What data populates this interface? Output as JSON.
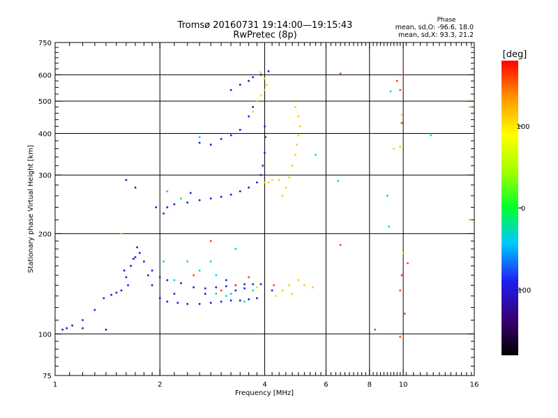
{
  "chart_data": {
    "type": "scatter",
    "title": "Tromsø 20160731 19:14:00—19:15:43",
    "subtitle": "RwPretec (8p)",
    "xlabel": "Frequency [MHz]",
    "ylabel": "Stationary phase Virtual Height [km]",
    "xscale": "log",
    "yscale": "log",
    "xlim": [
      1,
      16
    ],
    "ylim": [
      75,
      750
    ],
    "grid": true,
    "xticks": [
      "1",
      "2",
      "4",
      "6",
      "8",
      "10",
      "16"
    ],
    "yticks": [
      "75",
      "100",
      "200",
      "300",
      "400",
      "500",
      "600",
      "750"
    ],
    "stats": {
      "heading": "Phase",
      "line1": "mean, sd,O:  -96.6, 18.0",
      "line2": "mean, sd,X:   93.3, 21.2"
    },
    "colorbar": {
      "label": "[deg]",
      "range": [
        -180,
        180
      ],
      "ticks": [
        "100",
        "0",
        "-100"
      ]
    },
    "series": [
      {
        "points": [
          [
            1.05,
            103,
            -100
          ],
          [
            1.08,
            104,
            -100
          ],
          [
            1.12,
            106,
            -100
          ],
          [
            1.2,
            110,
            -100
          ],
          [
            1.3,
            118,
            -100
          ],
          [
            1.38,
            128,
            -100
          ],
          [
            1.45,
            131,
            -100
          ],
          [
            1.55,
            135,
            -100
          ],
          [
            1.62,
            140,
            -100
          ],
          [
            1.6,
            148,
            -100
          ],
          [
            1.58,
            155,
            -100
          ],
          [
            1.65,
            160,
            -100
          ],
          [
            1.7,
            170,
            -100
          ],
          [
            1.75,
            175,
            -100
          ],
          [
            1.72,
            182,
            -100
          ],
          [
            1.8,
            165,
            -100
          ],
          [
            1.85,
            150,
            -100
          ],
          [
            1.9,
            140,
            -100
          ],
          [
            2.0,
            128,
            -100
          ],
          [
            2.1,
            125,
            -100
          ],
          [
            2.25,
            124,
            -100
          ],
          [
            2.4,
            123,
            -100
          ],
          [
            2.6,
            123,
            -100
          ],
          [
            2.8,
            124,
            -100
          ],
          [
            3.0,
            125,
            -100
          ],
          [
            3.2,
            126,
            -100
          ],
          [
            3.4,
            126,
            -100
          ],
          [
            3.6,
            127,
            -100
          ],
          [
            3.8,
            128,
            -100
          ],
          [
            1.9,
            155,
            -100
          ],
          [
            2.0,
            148,
            -100
          ],
          [
            2.1,
            145,
            -100
          ],
          [
            2.3,
            142,
            -100
          ],
          [
            2.5,
            138,
            -100
          ],
          [
            2.7,
            137,
            -100
          ],
          [
            2.9,
            138,
            -100
          ],
          [
            3.1,
            139,
            -100
          ],
          [
            3.3,
            140,
            -100
          ],
          [
            3.5,
            141,
            -100
          ],
          [
            3.7,
            141,
            -100
          ],
          [
            3.9,
            141,
            -100
          ],
          [
            4.2,
            135,
            -100
          ],
          [
            2.05,
            230,
            -100
          ],
          [
            2.1,
            240,
            -100
          ],
          [
            2.2,
            245,
            -100
          ],
          [
            2.4,
            248,
            -100
          ],
          [
            2.6,
            252,
            -100
          ],
          [
            2.8,
            255,
            -100
          ],
          [
            3.0,
            258,
            -100
          ],
          [
            3.2,
            262,
            -100
          ],
          [
            3.4,
            268,
            -100
          ],
          [
            3.6,
            275,
            -100
          ],
          [
            3.8,
            285,
            -100
          ],
          [
            3.9,
            300,
            -100
          ],
          [
            3.95,
            320,
            -100
          ],
          [
            4.0,
            350,
            -100
          ],
          [
            4.02,
            390,
            -100
          ],
          [
            4.0,
            420,
            -100
          ],
          [
            2.6,
            375,
            -100
          ],
          [
            2.8,
            370,
            -100
          ],
          [
            3.0,
            385,
            -100
          ],
          [
            3.2,
            395,
            -100
          ],
          [
            3.4,
            410,
            -100
          ],
          [
            3.6,
            450,
            -100
          ],
          [
            3.7,
            480,
            -100
          ],
          [
            3.8,
            500,
            -100
          ],
          [
            3.2,
            540,
            -100
          ],
          [
            3.4,
            560,
            -100
          ],
          [
            3.6,
            575,
            -100
          ],
          [
            3.7,
            590,
            -100
          ],
          [
            3.9,
            600,
            -100
          ],
          [
            4.1,
            615,
            -100
          ],
          [
            1.95,
            240,
            -100
          ],
          [
            1.6,
            290,
            -100
          ],
          [
            1.7,
            275,
            -100
          ],
          [
            2.45,
            265,
            -100
          ],
          [
            1.2,
            104,
            -100
          ],
          [
            1.4,
            103,
            -100
          ],
          [
            1.5,
            133,
            -100
          ],
          [
            3.5,
            137,
            -100
          ],
          [
            3.3,
            135,
            -100
          ],
          [
            3.1,
            145,
            -100
          ],
          [
            2.7,
            132,
            -100
          ],
          [
            2.2,
            132,
            -100
          ],
          [
            1.68,
            168,
            -100
          ]
        ]
      },
      {
        "points": [
          [
            2.1,
            268,
            -30
          ],
          [
            2.3,
            255,
            -30
          ],
          [
            2.6,
            390,
            -30
          ],
          [
            3.5,
            125,
            -30
          ],
          [
            3.2,
            132,
            -30
          ],
          [
            2.2,
            145,
            -30
          ],
          [
            2.6,
            155,
            -30
          ],
          [
            2.8,
            165,
            -30
          ],
          [
            2.4,
            165,
            -30
          ],
          [
            3.1,
            130,
            -30
          ],
          [
            3.7,
            135,
            -30
          ],
          [
            2.9,
            132,
            -30
          ],
          [
            5.6,
            345,
            -30
          ],
          [
            9.2,
            535,
            -30
          ],
          [
            12.0,
            395,
            -30
          ],
          [
            6.5,
            288,
            -30
          ],
          [
            9.0,
            260,
            -30
          ],
          [
            9.1,
            210,
            -30
          ],
          [
            3.3,
            180,
            -30
          ],
          [
            2.05,
            165,
            -30
          ],
          [
            2.9,
            150,
            -30
          ]
        ]
      },
      {
        "points": [
          [
            4.5,
            260,
            110
          ],
          [
            4.6,
            275,
            110
          ],
          [
            4.7,
            295,
            110
          ],
          [
            4.8,
            320,
            110
          ],
          [
            4.9,
            345,
            110
          ],
          [
            4.95,
            370,
            110
          ],
          [
            5.0,
            395,
            110
          ],
          [
            5.05,
            420,
            110
          ],
          [
            5.0,
            450,
            110
          ],
          [
            4.9,
            480,
            110
          ],
          [
            4.4,
            290,
            110
          ],
          [
            4.2,
            290,
            110
          ],
          [
            4.1,
            285,
            110
          ],
          [
            4.0,
            285,
            110
          ],
          [
            3.7,
            465,
            110
          ],
          [
            3.8,
            500,
            110
          ],
          [
            3.9,
            520,
            110
          ],
          [
            4.0,
            540,
            110
          ],
          [
            4.05,
            560,
            110
          ],
          [
            4.5,
            135,
            110
          ],
          [
            4.7,
            140,
            110
          ],
          [
            5.0,
            145,
            110
          ],
          [
            5.2,
            140,
            110
          ],
          [
            5.5,
            138,
            110
          ],
          [
            4.8,
            132,
            110
          ],
          [
            4.3,
            130,
            110
          ],
          [
            3.8,
            138,
            110
          ],
          [
            9.4,
            360,
            110
          ],
          [
            9.8,
            365,
            110
          ],
          [
            9.9,
            455,
            110
          ],
          [
            15.5,
            480,
            110
          ],
          [
            15.5,
            220,
            110
          ],
          [
            1.55,
            200,
            110
          ],
          [
            4.0,
            585,
            110
          ],
          [
            3.9,
            610,
            110
          ],
          [
            10.0,
            175,
            110
          ]
        ]
      },
      {
        "points": [
          [
            3.0,
            135,
            160
          ],
          [
            3.3,
            140,
            160
          ],
          [
            3.6,
            148,
            160
          ],
          [
            2.8,
            190,
            160
          ],
          [
            2.5,
            150,
            160
          ],
          [
            6.6,
            605,
            160
          ],
          [
            6.6,
            185,
            160
          ],
          [
            9.8,
            540,
            160
          ],
          [
            9.9,
            430,
            160
          ],
          [
            9.8,
            98,
            160
          ],
          [
            9.9,
            150,
            160
          ],
          [
            9.6,
            575,
            160
          ],
          [
            4.25,
            140,
            160
          ],
          [
            8.3,
            103,
            160
          ],
          [
            10.3,
            163,
            160
          ],
          [
            10.1,
            115,
            160
          ],
          [
            9.8,
            135,
            160
          ],
          [
            10.0,
            600,
            160
          ]
        ]
      }
    ]
  }
}
